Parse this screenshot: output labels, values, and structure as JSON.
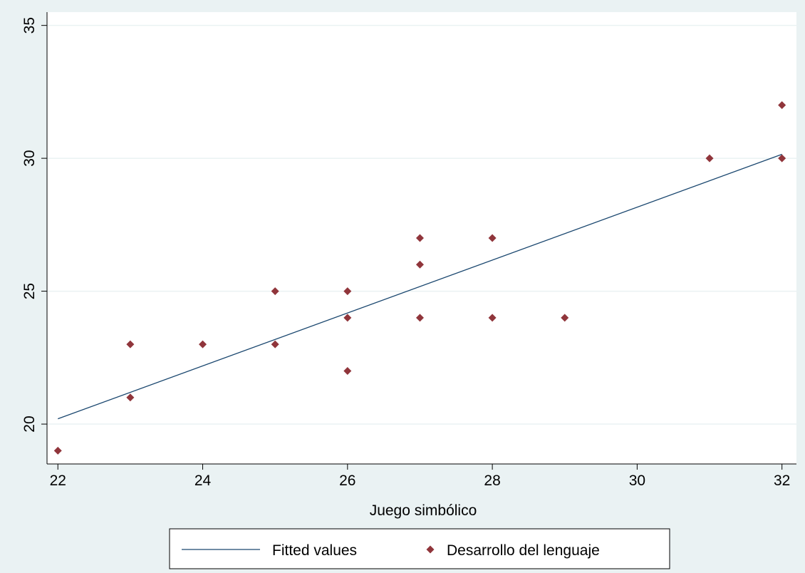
{
  "colors": {
    "background": "#eaf2f3",
    "plot_background": "#ffffff",
    "grid": "#eaf2f3",
    "fitted_line": "#1a476f",
    "markers": "#90353b"
  },
  "chart_data": {
    "type": "scatter",
    "title": "",
    "xlabel": "Juego simbólico",
    "ylabel": "",
    "xlim": [
      21.85,
      32.2
    ],
    "ylim": [
      18.5,
      35.5
    ],
    "xticks": [
      22,
      24,
      26,
      28,
      30,
      32
    ],
    "yticks": [
      20,
      25,
      30,
      35
    ],
    "grid": true,
    "legend_position": "bottom",
    "series": [
      {
        "name": "Fitted values",
        "kind": "line",
        "x": [
          22,
          32
        ],
        "y": [
          20.2,
          30.15
        ]
      },
      {
        "name": "Desarrollo del lenguaje",
        "kind": "scatter",
        "marker": "diamond",
        "x": [
          22,
          23,
          23,
          24,
          25,
          25,
          26,
          26,
          26,
          27,
          27,
          27,
          28,
          28,
          29,
          31,
          32,
          32
        ],
        "y": [
          19,
          21,
          23,
          23,
          23,
          25,
          22,
          24,
          25,
          24,
          26,
          27,
          24,
          27,
          24,
          30,
          30,
          32
        ]
      }
    ]
  }
}
